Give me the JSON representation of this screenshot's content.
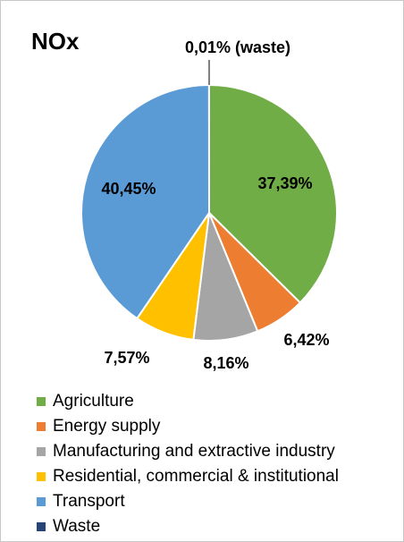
{
  "chart_data": {
    "type": "pie",
    "title": "NOx",
    "legend_position": "bottom",
    "slices": [
      {
        "name": "Agriculture",
        "value": 37.39,
        "label": "37,39%",
        "color": "#70ad47"
      },
      {
        "name": "Energy supply",
        "value": 6.42,
        "label": "6,42%",
        "color": "#ed7d31"
      },
      {
        "name": "Manufacturing and extractive industry",
        "value": 8.16,
        "label": "8,16%",
        "color": "#a5a5a5"
      },
      {
        "name": "Residential, commercial & institutional",
        "value": 7.57,
        "label": "7,57%",
        "color": "#ffc000"
      },
      {
        "name": "Transport",
        "value": 40.45,
        "label": "40,45%",
        "color": "#5b9bd5"
      },
      {
        "name": "Waste",
        "value": 0.01,
        "label": "0,01% (waste)",
        "color": "#264478"
      }
    ]
  }
}
